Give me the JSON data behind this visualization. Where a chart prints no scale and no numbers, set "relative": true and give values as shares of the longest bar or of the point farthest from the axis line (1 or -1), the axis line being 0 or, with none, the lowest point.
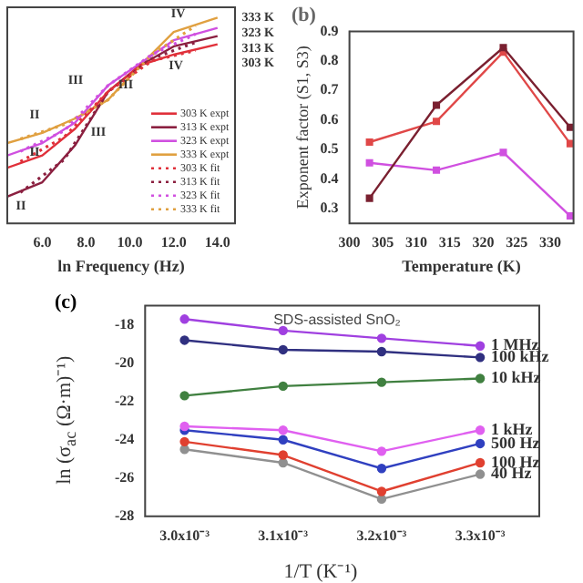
{
  "chart_data": [
    {
      "type": "line",
      "relative": true,
      "xlabel": "ln Frequency (Hz)",
      "xlim": [
        4.4,
        14.8
      ],
      "xticks": [
        {
          "value": 6,
          "label": "6.0"
        },
        {
          "value": 8,
          "label": "8.0"
        },
        {
          "value": 10,
          "label": "10.0"
        },
        {
          "value": 12,
          "label": "12.0"
        },
        {
          "value": 14,
          "label": "14.0"
        }
      ],
      "legend": "bottom right",
      "marker": "none",
      "x": [
        4.4,
        6,
        7.5,
        9,
        10.5,
        12,
        14
      ],
      "series": [
        {
          "name": "303 K fit",
          "color": "#e0303a",
          "line_style": "dotted",
          "x": [
            5,
            7,
            9,
            11,
            13
          ],
          "values": [
            0.3,
            0.42,
            0.64,
            0.79,
            0.84
          ]
        },
        {
          "name": "313 K fit",
          "color": "#8b2040",
          "line_style": "dotted",
          "x": [
            5,
            7,
            9,
            11,
            13
          ],
          "values": [
            0.15,
            0.31,
            0.64,
            0.8,
            0.88
          ]
        },
        {
          "name": "323 K fit",
          "color": "#d050e0",
          "line_style": "dotted",
          "x": [
            5,
            7,
            9,
            11,
            13
          ],
          "values": [
            0.35,
            0.45,
            0.67,
            0.82,
            0.92
          ]
        },
        {
          "name": "333 K fit",
          "color": "#e0a040",
          "line_style": "dotted",
          "x": [
            5,
            7,
            9,
            11,
            13
          ],
          "values": [
            0.41,
            0.48,
            0.6,
            0.82,
            0.96
          ]
        },
        {
          "name": "303 K expt",
          "color": "#e0303a",
          "line_style": "solid",
          "values": [
            0.27,
            0.33,
            0.46,
            0.64,
            0.77,
            0.82,
            0.87
          ]
        },
        {
          "name": "313 K expt",
          "color": "#8b2040",
          "line_style": "solid",
          "values": [
            0.13,
            0.2,
            0.38,
            0.64,
            0.77,
            0.86,
            0.91
          ]
        },
        {
          "name": "323 K expt",
          "color": "#d050e0",
          "line_style": "solid",
          "values": [
            0.33,
            0.39,
            0.49,
            0.67,
            0.78,
            0.89,
            0.95
          ]
        },
        {
          "name": "333 K expt",
          "color": "#e0a040",
          "line_style": "solid",
          "values": [
            0.39,
            0.44,
            0.51,
            0.6,
            0.77,
            0.93,
            1
          ]
        }
      ],
      "annotations": [
        "333 K",
        "323 K",
        "313 K",
        "303 K",
        "IV",
        "IV",
        "III",
        "III",
        "III",
        "II",
        "II",
        "II"
      ]
    },
    {
      "type": "line",
      "title": "(b)",
      "xlabel": "Temperature (K)",
      "ylabel": "Exponent factor (S1, S3)",
      "xlim": [
        300,
        333.5
      ],
      "xticks": [
        300,
        305,
        310,
        315,
        320,
        325,
        330
      ],
      "ylim": [
        0.25,
        0.9
      ],
      "yticks": [
        0.3,
        0.4,
        0.5,
        0.6,
        0.7,
        0.8,
        0.9
      ],
      "marker": "square",
      "x": [
        303,
        313,
        323,
        333
      ],
      "series": [
        {
          "color": "#7a2030",
          "values": [
            0.335,
            0.65,
            0.845,
            0.575
          ]
        },
        {
          "color": "#e04848",
          "values": [
            0.525,
            0.595,
            0.83,
            0.52
          ]
        },
        {
          "color": "#d050e0",
          "values": [
            0.455,
            0.43,
            0.49,
            0.275
          ]
        }
      ]
    },
    {
      "type": "line",
      "title": "(c)",
      "subtitle": "SDS-assisted SnO₂",
      "xlabel": "1/T (K⁻¹)",
      "ylabel": "ln (σ$_{ac}$ (Ω·m)⁻¹)",
      "xlim": [
        0.00296,
        0.00336
      ],
      "xticks": [
        {
          "value": 0.003,
          "label": "3.0x10⁻³"
        },
        {
          "value": 0.0031,
          "label": "3.1x10⁻³"
        },
        {
          "value": 0.0032,
          "label": "3.2x10⁻³"
        },
        {
          "value": 0.0033,
          "label": "3.3x10⁻³"
        }
      ],
      "ylim": [
        -28,
        -17
      ],
      "yticks": [
        -28,
        -26,
        -24,
        -22,
        -20,
        -18
      ],
      "marker": "circle",
      "x": [
        0.003,
        0.0031,
        0.0032,
        0.0033
      ],
      "series": [
        {
          "name": "1 MHz",
          "color": "#a040e0",
          "values": [
            -17.7,
            -18.3,
            -18.7,
            -19.1
          ]
        },
        {
          "name": "100 kHz",
          "color": "#303080",
          "values": [
            -18.8,
            -19.3,
            -19.4,
            -19.7
          ]
        },
        {
          "name": "10 kHz",
          "color": "#408040",
          "values": [
            -21.7,
            -21.2,
            -21,
            -20.8
          ]
        },
        {
          "name": "1 kHz",
          "color": "#e060f0",
          "values": [
            -23.3,
            -23.5,
            -24.6,
            -23.5
          ]
        },
        {
          "name": "500 Hz",
          "color": "#3040c0",
          "values": [
            -23.5,
            -24,
            -25.5,
            -24.2
          ]
        },
        {
          "name": "100 Hz",
          "color": "#e04030",
          "values": [
            -24.1,
            -24.8,
            -26.7,
            -25.2
          ]
        },
        {
          "name": "40 Hz",
          "color": "#909090",
          "values": [
            -24.5,
            -25.2,
            -27.1,
            -25.8
          ]
        }
      ]
    }
  ]
}
